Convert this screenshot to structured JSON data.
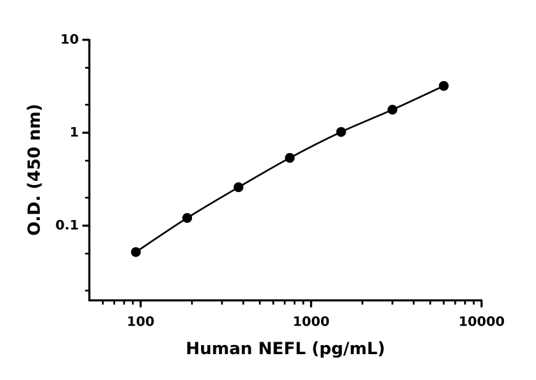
{
  "chart_data": {
    "type": "scatter",
    "x_label": "Human NEFL (pg/mL)",
    "y_label": "O.D. (450 nm)",
    "x": [
      93.75,
      187.5,
      375,
      750,
      1500,
      3000,
      6000
    ],
    "series": [
      {
        "name": "Human NEFL",
        "color": "#000000",
        "values": [
          0.052,
          0.121,
          0.259,
          0.536,
          1.02,
          1.77,
          3.19
        ]
      }
    ],
    "xlim": [
      50,
      10000
    ],
    "ylim": [
      0.0157,
      10
    ],
    "xticks": [
      100,
      1000,
      10000
    ],
    "yticks": [
      0.1,
      1,
      10
    ],
    "minor_xticks": [
      60,
      70,
      80,
      90,
      200,
      300,
      400,
      500,
      600,
      700,
      800,
      900,
      2000,
      3000,
      4000,
      5000,
      6000,
      7000,
      8000,
      9000
    ],
    "minor_yticks": [
      0.02,
      0.05,
      0.2,
      0.5,
      2,
      5
    ],
    "xscale": "log",
    "yscale": "log",
    "fit_line": true
  }
}
